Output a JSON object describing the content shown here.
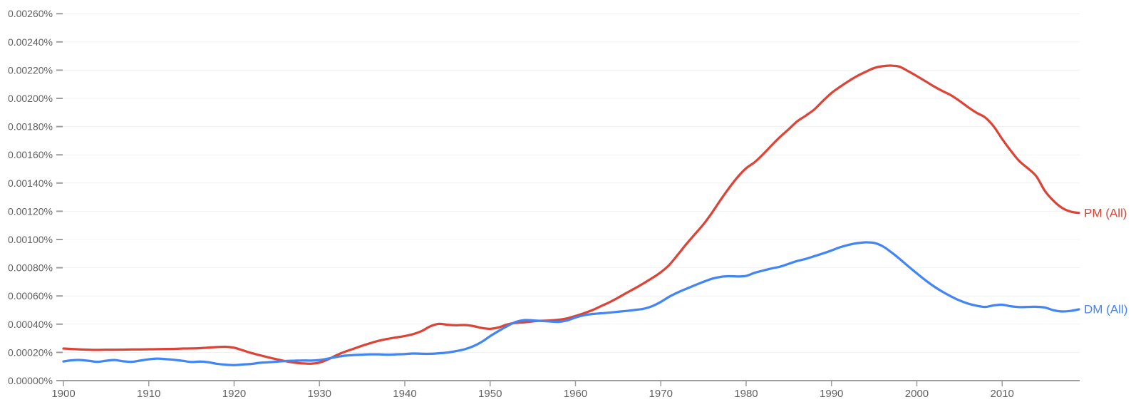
{
  "chart_data": {
    "type": "line",
    "title": "",
    "xlabel": "",
    "ylabel": "",
    "xlim": [
      1900,
      2019
    ],
    "ylim": [
      0,
      0.0026
    ],
    "y_unit": "%",
    "grid": "horizontal",
    "legend_position": "line-end-right",
    "x_ticks": [
      1900,
      1910,
      1920,
      1930,
      1940,
      1950,
      1960,
      1970,
      1980,
      1990,
      2000,
      2010
    ],
    "y_tick_labels": [
      "0.00000%",
      "0.00020%",
      "0.00040%",
      "0.00060%",
      "0.00080%",
      "0.00100%",
      "0.00120%",
      "0.00140%",
      "0.00160%",
      "0.00180%",
      "0.00200%",
      "0.00220%",
      "0.00240%",
      "0.00260%"
    ],
    "colors": {
      "axis": "#9e9e9e",
      "grid": "#f1f1f1",
      "tick_label": "#616161",
      "pm_red": "#db4437",
      "dm_blue": "#4285f4"
    },
    "series": [
      {
        "label": "PM (All)",
        "slug": "pm-all",
        "color": "#db4437",
        "start_year": 1900,
        "values": [
          0.000227,
          0.000224,
          0.000221,
          0.000219,
          0.000218,
          0.000219,
          0.000219,
          0.00022,
          0.000221,
          0.000221,
          0.000222,
          0.000223,
          0.000224,
          0.000225,
          0.000227,
          0.000228,
          0.00023,
          0.000234,
          0.000238,
          0.00024,
          0.000233,
          0.000215,
          0.000196,
          0.00018,
          0.000165,
          0.000151,
          0.000138,
          0.000128,
          0.000122,
          0.00012,
          0.000128,
          0.00015,
          0.00018,
          0.000205,
          0.000226,
          0.000247,
          0.000266,
          0.000283,
          0.000296,
          0.000306,
          0.000316,
          0.00033,
          0.000352,
          0.000385,
          0.000402,
          0.000396,
          0.000392,
          0.000394,
          0.000387,
          0.000373,
          0.000367,
          0.000377,
          0.000398,
          0.000409,
          0.000413,
          0.00042,
          0.000424,
          0.000426,
          0.000431,
          0.000441,
          0.000458,
          0.000478,
          0.0005,
          0.000528,
          0.000556,
          0.000588,
          0.000622,
          0.000655,
          0.00069,
          0.000727,
          0.000768,
          0.00082,
          0.000893,
          0.000968,
          0.001038,
          0.001108,
          0.00119,
          0.00128,
          0.001365,
          0.001442,
          0.001505,
          0.001548,
          0.001605,
          0.001668,
          0.001728,
          0.001782,
          0.001838,
          0.001878,
          0.001922,
          0.001982,
          0.002038,
          0.002082,
          0.002122,
          0.002158,
          0.002188,
          0.002215,
          0.002228,
          0.002232,
          0.002224,
          0.002192,
          0.002158,
          0.002122,
          0.002085,
          0.002052,
          0.002022,
          0.001982,
          0.001938,
          0.001898,
          0.001865,
          0.001802,
          0.001712,
          0.00163,
          0.001556,
          0.001505,
          0.001448,
          0.001345,
          0.001275,
          0.001225,
          0.001198,
          0.001188
        ]
      },
      {
        "label": "DM (All)",
        "slug": "dm-all",
        "color": "#4285f4",
        "start_year": 1900,
        "values": [
          0.000136,
          0.000144,
          0.000146,
          0.00014,
          0.000133,
          0.000141,
          0.000146,
          0.000137,
          0.000133,
          0.000142,
          0.000151,
          0.000156,
          0.000152,
          0.000147,
          0.00014,
          0.000132,
          0.000135,
          0.00013,
          0.000119,
          0.000113,
          0.00011,
          0.000114,
          0.000118,
          0.000126,
          0.00013,
          0.000134,
          0.000139,
          0.000141,
          0.000143,
          0.000142,
          0.000146,
          0.000156,
          0.000168,
          0.000177,
          0.000181,
          0.000184,
          0.000186,
          0.000186,
          0.000184,
          0.000186,
          0.000188,
          0.000192,
          0.00019,
          0.00019,
          0.000194,
          0.000199,
          0.000209,
          0.000222,
          0.000243,
          0.000274,
          0.000315,
          0.000352,
          0.000386,
          0.000416,
          0.000429,
          0.000427,
          0.000423,
          0.000419,
          0.000416,
          0.000426,
          0.000447,
          0.000463,
          0.000472,
          0.000477,
          0.000482,
          0.000488,
          0.000494,
          0.000501,
          0.000509,
          0.000528,
          0.000558,
          0.000595,
          0.000625,
          0.000651,
          0.000676,
          0.0007,
          0.000722,
          0.000735,
          0.00074,
          0.000738,
          0.000742,
          0.000764,
          0.00078,
          0.000795,
          0.000808,
          0.000828,
          0.000848,
          0.000863,
          0.000882,
          0.000901,
          0.000922,
          0.000945,
          0.000962,
          0.000974,
          0.00098,
          0.000976,
          0.000952,
          0.00091,
          0.000862,
          0.00081,
          0.00076,
          0.000712,
          0.000668,
          0.00063,
          0.000597,
          0.000568,
          0.000546,
          0.000531,
          0.000522,
          0.000533,
          0.000538,
          0.000527,
          0.000521,
          0.000522,
          0.000523,
          0.000518,
          0.000499,
          0.00049,
          0.000494,
          0.000505
        ]
      }
    ]
  }
}
